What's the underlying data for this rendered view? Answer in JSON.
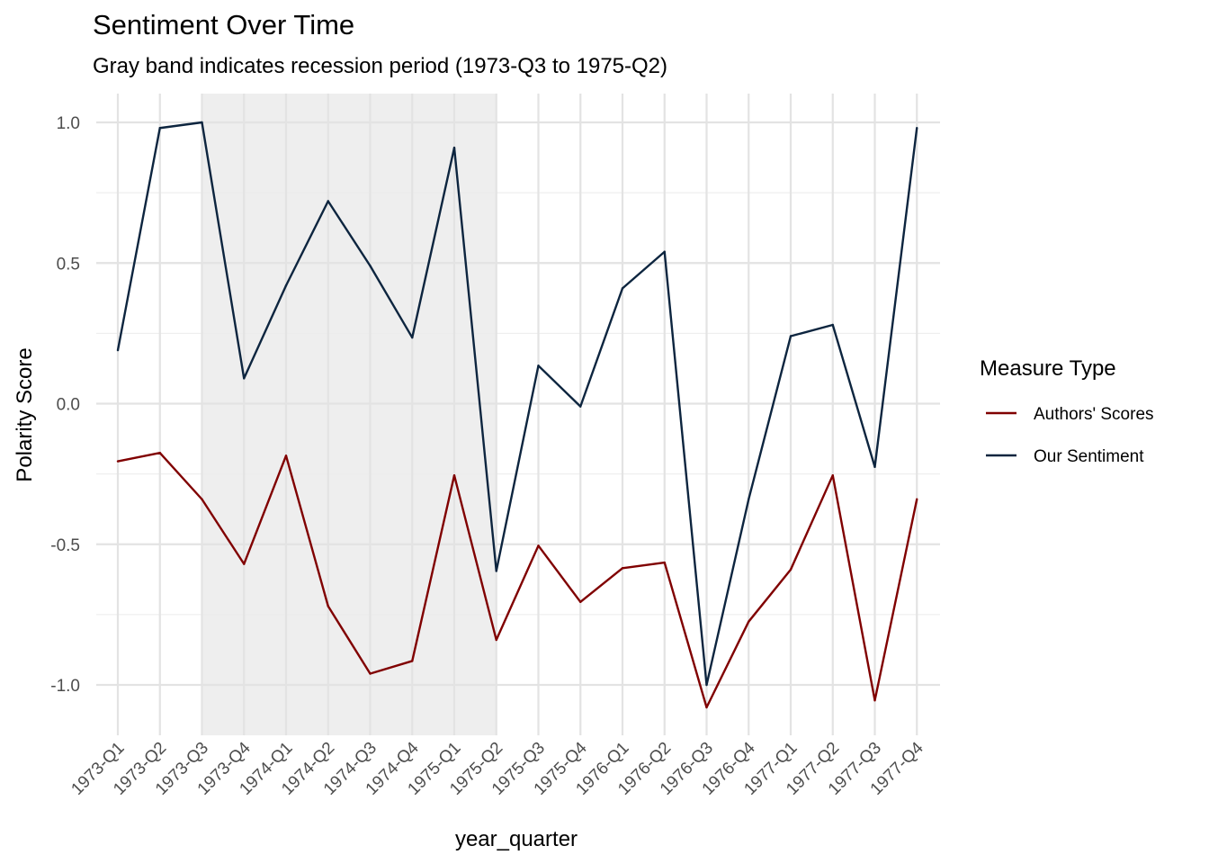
{
  "chart_data": {
    "type": "line",
    "title": "Sentiment Over Time",
    "subtitle": "Gray band indicates recession period (1973-Q3 to 1975-Q2)",
    "xlabel": "year_quarter",
    "ylabel": "Polarity Score",
    "categories": [
      "1973-Q1",
      "1973-Q2",
      "1973-Q3",
      "1973-Q4",
      "1974-Q1",
      "1974-Q2",
      "1974-Q3",
      "1974-Q4",
      "1975-Q1",
      "1975-Q2",
      "1975-Q3",
      "1975-Q4",
      "1976-Q1",
      "1976-Q2",
      "1976-Q3",
      "1976-Q4",
      "1977-Q1",
      "1977-Q2",
      "1977-Q3",
      "1977-Q4"
    ],
    "ylim": [
      -1.18,
      1.11
    ],
    "yticks": [
      1.0,
      0.5,
      0.0,
      -0.5,
      -1.0
    ],
    "ytick_labels": [
      "1.0",
      "0.5",
      "0.0",
      "-0.5",
      "-1.0"
    ],
    "grid": true,
    "shaded_band": {
      "from": "1973-Q3",
      "to": "1975-Q2",
      "color": "#eeeeee"
    },
    "legend": {
      "title": "Measure Type",
      "position": "right"
    },
    "series": [
      {
        "name": "Authors' Scores",
        "color": "#800000",
        "values": [
          -0.205,
          -0.175,
          -0.34,
          -0.57,
          -0.185,
          -0.72,
          -0.96,
          -0.915,
          -0.255,
          -0.84,
          -0.505,
          -0.705,
          -0.585,
          -0.565,
          -1.08,
          -0.775,
          -0.59,
          -0.255,
          -1.055,
          -0.34
        ]
      },
      {
        "name": "Our Sentiment",
        "color": "#0d253f",
        "values": [
          0.19,
          0.98,
          1.0,
          0.09,
          0.42,
          0.72,
          0.49,
          0.235,
          0.91,
          -0.595,
          0.135,
          -0.01,
          0.41,
          0.54,
          -1.0,
          -0.34,
          0.24,
          0.28,
          -0.225,
          0.98
        ]
      }
    ]
  }
}
